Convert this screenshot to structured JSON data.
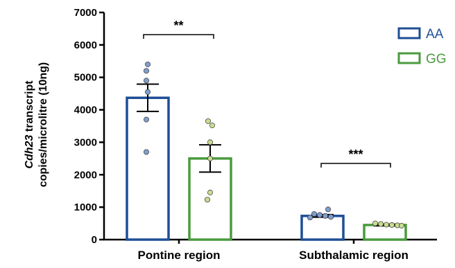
{
  "chart_data": {
    "type": "bar",
    "ylabel_italic": "Cdh23",
    "ylabel_rest": " transcript",
    "ylabel_line2": "copies/microlitre (10ng)",
    "ylim": [
      0,
      7000
    ],
    "yticks": [
      "0",
      "1000",
      "2000",
      "3000",
      "4000",
      "5000",
      "6000",
      "7000"
    ],
    "categories": [
      "Pontine region",
      "Subthalamic region"
    ],
    "series": [
      {
        "name": "AA",
        "color": "#1f4e96",
        "dot_color": "#7f9fcf",
        "values": [
          4370,
          730
        ],
        "sem": [
          420,
          40
        ],
        "points": [
          [
            5400,
            5200,
            4900,
            4550,
            3700,
            2700
          ],
          [
            930,
            790,
            760,
            730,
            700,
            680
          ]
        ]
      },
      {
        "name": "GG",
        "color": "#4a9a3e",
        "dot_color": "#c9dd8e",
        "values": [
          2500,
          450
        ],
        "sem": [
          420,
          25
        ],
        "points": [
          [
            3650,
            3520,
            3000,
            2500,
            1450,
            1230
          ],
          [
            500,
            480,
            460,
            450,
            440,
            430
          ]
        ]
      }
    ],
    "significance": [
      "**",
      "***"
    ],
    "legend_position": "top-right"
  }
}
